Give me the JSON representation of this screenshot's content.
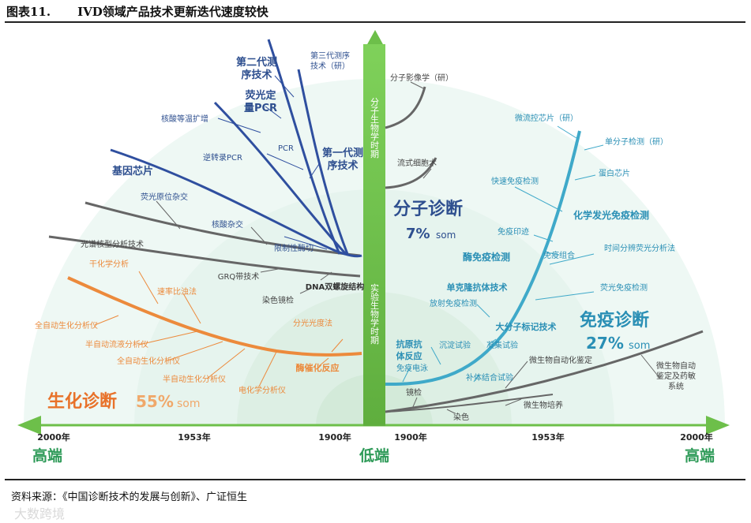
{
  "figure": {
    "number": "图表11.",
    "title": "IVD领域产品技术更新迭代速度较快",
    "source": "资料来源：《中国诊断技术的发展与创新》、广证恒生",
    "watermark": "大数跨境"
  },
  "axis": {
    "left_end": "2000年",
    "left_mid": "1953年",
    "left_near": "1900年",
    "right_near": "1900年",
    "right_mid": "1953年",
    "right_end": "2000年",
    "high_left": "高端",
    "low_center": "低端",
    "high_right": "高端"
  },
  "center_bar": {
    "top_label": "分子生物学时期",
    "bottom_label": "实验生物学时期"
  },
  "categories": {
    "molecular": {
      "name": "分子诊断",
      "share": "7%",
      "suffix": "som"
    },
    "immuno": {
      "name": "免疫诊断",
      "share": "27%",
      "suffix": "som"
    },
    "biochem": {
      "name": "生化诊断",
      "share": "55%",
      "suffix": "som"
    }
  },
  "molecular_labels": {
    "gen3": "第三代测序技术（研）",
    "gen2": "第二代测序技术",
    "qpcr": "荧光定量PCR",
    "isothermal": "核酸等温扩增",
    "pcr": "PCR",
    "rtpcr": "逆转录PCR",
    "gen1": "第一代测序技术",
    "chip": "基因芯片",
    "fish": "荧光原位杂交",
    "hybrid": "核酸杂交",
    "karyotype": "光谱核型分析技术",
    "restriction": "限制性酶切",
    "grq": "GRQ带技术",
    "dna": "DNA双螺旋结构",
    "staining": "染色镜检",
    "imaging": "分子影像学（研）",
    "flow": "流式细胞术"
  },
  "immuno_labels": {
    "microfluidic": "微流控芯片（研）",
    "single_molecule": "单分子检测（研）",
    "protein_chip": "蛋白芯片",
    "rapid": "快速免疫检测",
    "chemilum": "化学发光免疫检测",
    "blot": "免疫印迹",
    "tr_fluoro": "时间分辨荧光分析法",
    "elisa": "酶免疫检测",
    "ihc": "免疫组合",
    "fluoro": "荧光免疫检测",
    "monoclonal": "单克隆抗体技术",
    "ria": "放射免疫检测",
    "macro_label": "大分子标记技术",
    "antigen_antibody": "抗原抗体反应",
    "precipitation": "沉淀试验",
    "agglutination": "凝集试验",
    "electrophoresis": "免疫电泳",
    "complement": "补体结合试验",
    "micro_auto": "微生物自动化鉴定",
    "auto_sensitivity": "微生物自动鉴定及药敏系统",
    "microscopy": "镜检",
    "culture": "微生物培养",
    "stain": "染色"
  },
  "biochem_labels": {
    "dry": "干化学分析",
    "rate": "速率比浊法",
    "full_auto": "全自动生化分析仪",
    "semi_flow": "半自动流液分析仪",
    "full_auto2": "全自动生化分析仪",
    "semi_auto": "半自动生化分析仪",
    "electrolyte": "电化学分析仪",
    "spectro": "分光光度法",
    "enzyme": "酶催化反应"
  },
  "colors": {
    "molecular_line": "#2f4f9f",
    "immuno_line": "#3fa9c9",
    "biochem_line": "#ec8a3c",
    "gray_line": "#666666",
    "center_bar": "#6dbf4a",
    "high_text": "#2e9a58",
    "immuno_text": "#2a8fb5",
    "molecular_text": "#2e4f8f",
    "biochem_text": "#e8722a",
    "bg_light": "#eef8f4"
  }
}
